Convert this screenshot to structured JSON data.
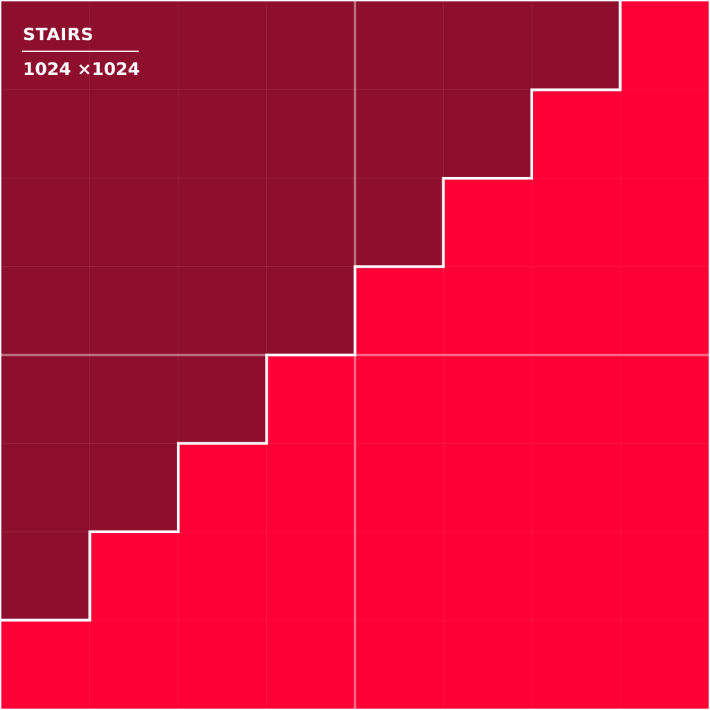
{
  "title": "STAIRS",
  "size_label": "1024 ×1024",
  "grid": {
    "columns": 8,
    "rows": 8,
    "dark_cells_per_row": [
      7,
      6,
      5,
      4,
      3,
      2,
      1,
      0
    ]
  },
  "colors": {
    "dark": "#8E0F2D",
    "bright": "#FF0036",
    "stair_line": "#FFFFFF",
    "grid_line": "rgba(255,255,255,0.08)",
    "center_line": "rgba(255,255,255,0.45)"
  }
}
